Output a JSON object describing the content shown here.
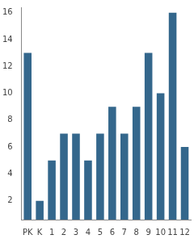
{
  "chart_data": {
    "type": "bar",
    "categories": [
      "PK",
      "K",
      "1",
      "2",
      "3",
      "4",
      "5",
      "6",
      "7",
      "8",
      "9",
      "10",
      "11",
      "12"
    ],
    "values": [
      13,
      2,
      5,
      7,
      7,
      5,
      7,
      9,
      7,
      9,
      13,
      10,
      16,
      6
    ],
    "color": "#34678c",
    "ylim": [
      0.6,
      16.4
    ],
    "yticks": [
      2,
      4,
      6,
      8,
      10,
      12,
      14,
      16
    ],
    "grid": false
  }
}
